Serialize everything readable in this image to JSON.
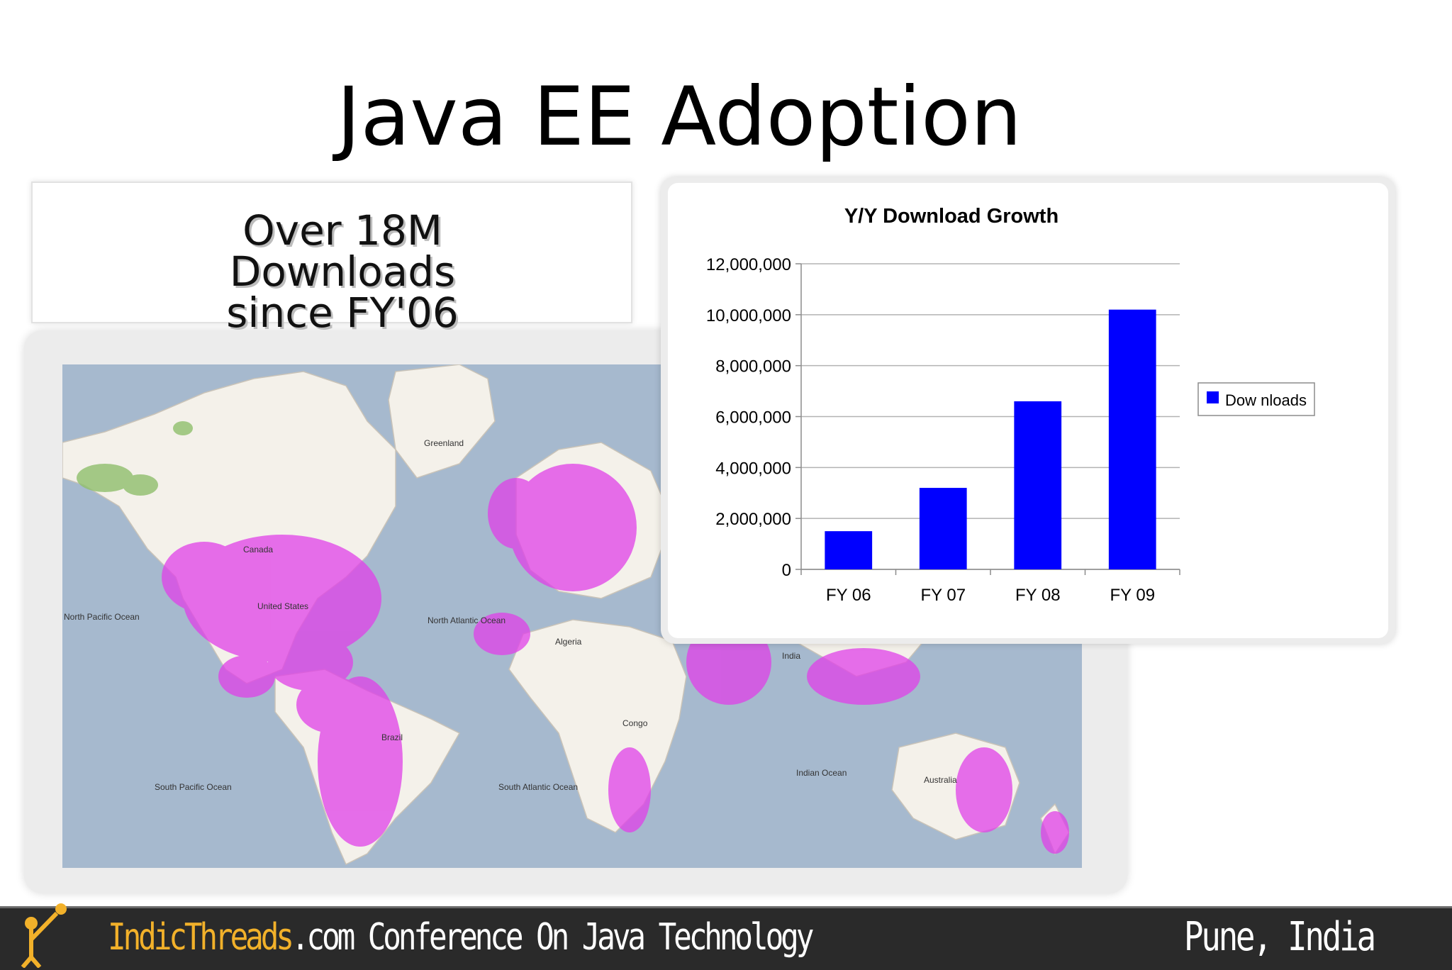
{
  "slide": {
    "title": "Java EE Adoption"
  },
  "callout": {
    "lines": [
      "Over 18M",
      "Downloads",
      "since FY'06"
    ]
  },
  "map": {
    "labels": {
      "greenland": "Greenland",
      "canada": "Canada",
      "us": "United States",
      "north_pacific": "North Pacific Ocean",
      "north_atlantic": "North Atlantic Ocean",
      "south_pacific": "South Pacific Ocean",
      "south_atlantic": "South Atlantic Ocean",
      "indian_ocean": "Indian Ocean",
      "brazil": "Brazil",
      "australia": "Australia",
      "algeria": "Algeria",
      "india": "India",
      "congo": "Congo"
    },
    "colors": {
      "ocean": "#a6b9ce",
      "land": "#f4f1ea",
      "hotspot": "#e040e8"
    }
  },
  "chart_data": {
    "type": "bar",
    "title": "Y/Y Download Growth",
    "categories": [
      "FY 06",
      "FY 07",
      "FY 08",
      "FY 09"
    ],
    "series": [
      {
        "name": "Dow nloads",
        "values": [
          1500000,
          3200000,
          6600000,
          10200000
        ],
        "color": "#0000ff"
      }
    ],
    "ylim": [
      0,
      12000000
    ],
    "yticks": [
      0,
      2000000,
      4000000,
      6000000,
      8000000,
      10000000,
      12000000
    ],
    "ytick_labels": [
      "0",
      "2,000,000",
      "4,000,000",
      "6,000,000",
      "8,000,000",
      "10,000,000",
      "12,000,000"
    ],
    "grid": true,
    "legend_position": "right"
  },
  "footer": {
    "brand": "IndicThreads",
    "rest": ".com Conference On Java Technology",
    "location": "Pune, India"
  }
}
